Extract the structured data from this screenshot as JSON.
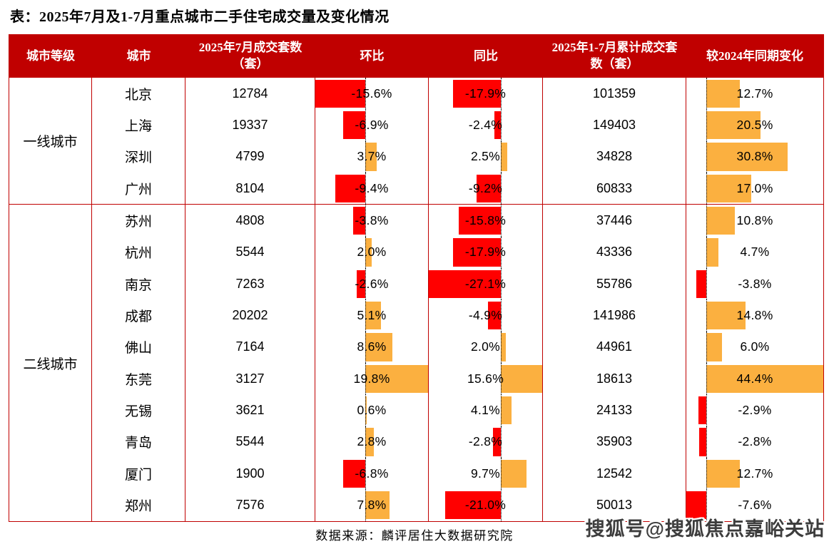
{
  "page_title": "表：2025年7月及1-7月重点城市二手住宅成交量及变化情况",
  "source_note": "数据来源：麟评居住大数据研究院",
  "watermark": "搜狐号@搜狐焦点嘉峪关站",
  "colors": {
    "header_bg": "#C00000",
    "table_border": "#C00000",
    "bar_negative": "#FF0000",
    "bar_positive": "#FBB040"
  },
  "chart_data": {
    "type": "table",
    "title": "2025年7月及1-7月重点城市二手住宅成交量及变化情况",
    "columns": [
      "城市等级",
      "城市",
      "2025年7月成交套数（套）",
      "环比",
      "同比",
      "2025年1-7月累计成交套数（套）",
      "较2024年同期变化"
    ],
    "percent_bar_columns": [
      "环比",
      "同比",
      "较2024年同期变化"
    ],
    "bar_axes": {
      "mom_pct": {
        "min": -15.6,
        "max": 19.8
      },
      "yoy_pct": {
        "min": -27.1,
        "max": 15.6
      },
      "vs2024_pct": {
        "min": -7.6,
        "max": 44.4
      }
    },
    "groups": [
      {
        "tier": "一线城市",
        "rows": [
          {
            "city": "北京",
            "jul_units": 12784,
            "mom_pct": -15.6,
            "yoy_pct": -17.9,
            "cum_units": 101359,
            "vs2024_pct": 12.7
          },
          {
            "city": "上海",
            "jul_units": 19337,
            "mom_pct": -6.9,
            "yoy_pct": -2.4,
            "cum_units": 149403,
            "vs2024_pct": 20.5
          },
          {
            "city": "深圳",
            "jul_units": 4799,
            "mom_pct": 3.7,
            "yoy_pct": 2.5,
            "cum_units": 34828,
            "vs2024_pct": 30.8
          },
          {
            "city": "广州",
            "jul_units": 8104,
            "mom_pct": -9.4,
            "yoy_pct": -9.2,
            "cum_units": 60833,
            "vs2024_pct": 17.0
          }
        ]
      },
      {
        "tier": "二线城市",
        "rows": [
          {
            "city": "苏州",
            "jul_units": 4808,
            "mom_pct": -3.8,
            "yoy_pct": -15.8,
            "cum_units": 37446,
            "vs2024_pct": 10.8
          },
          {
            "city": "杭州",
            "jul_units": 5544,
            "mom_pct": 2.0,
            "yoy_pct": -17.9,
            "cum_units": 43336,
            "vs2024_pct": 4.7
          },
          {
            "city": "南京",
            "jul_units": 7263,
            "mom_pct": -2.6,
            "yoy_pct": -27.1,
            "cum_units": 55786,
            "vs2024_pct": -3.8
          },
          {
            "city": "成都",
            "jul_units": 20202,
            "mom_pct": 5.1,
            "yoy_pct": -4.9,
            "cum_units": 141986,
            "vs2024_pct": 14.8
          },
          {
            "city": "佛山",
            "jul_units": 7164,
            "mom_pct": 8.6,
            "yoy_pct": 2.0,
            "cum_units": 44961,
            "vs2024_pct": 6.0
          },
          {
            "city": "东莞",
            "jul_units": 3127,
            "mom_pct": 19.8,
            "yoy_pct": 15.6,
            "cum_units": 18613,
            "vs2024_pct": 44.4
          },
          {
            "city": "无锡",
            "jul_units": 3621,
            "mom_pct": 0.6,
            "yoy_pct": 4.1,
            "cum_units": 24133,
            "vs2024_pct": -2.9
          },
          {
            "city": "青岛",
            "jul_units": 5544,
            "mom_pct": 2.8,
            "yoy_pct": -2.8,
            "cum_units": 35903,
            "vs2024_pct": -2.8
          },
          {
            "city": "厦门",
            "jul_units": 1900,
            "mom_pct": -6.8,
            "yoy_pct": 9.7,
            "cum_units": 12542,
            "vs2024_pct": 12.7
          },
          {
            "city": "郑州",
            "jul_units": 7576,
            "mom_pct": 7.8,
            "yoy_pct": -21.0,
            "cum_units": 50013,
            "vs2024_pct": -7.6
          }
        ]
      }
    ]
  }
}
